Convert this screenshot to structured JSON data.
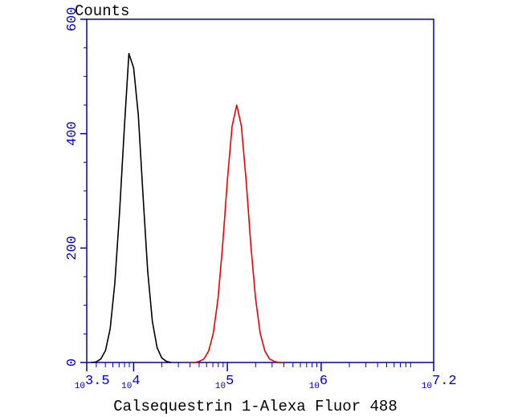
{
  "chart_data": {
    "type": "line",
    "y_label": "Counts",
    "x_label": "Calsequestrin 1-Alexa Fluor 488",
    "x_scale": "log",
    "xlim": [
      3162.28,
      15848931.92
    ],
    "xticks": [
      {
        "value": 3162.28,
        "label": "10",
        "exponent": "3.5"
      },
      {
        "value": 10000,
        "label": "10",
        "exponent": "4"
      },
      {
        "value": 100000,
        "label": "10",
        "exponent": "5"
      },
      {
        "value": 1000000,
        "label": "10",
        "exponent": "6"
      },
      {
        "value": 15848931.92,
        "label": "10",
        "exponent": "7.2"
      }
    ],
    "ylim": [
      0,
      600
    ],
    "yticks": [
      0,
      200,
      400,
      600
    ],
    "axis_color": "#0000cc",
    "series": [
      {
        "color": "#000000",
        "x": [
          3548,
          3981,
          4467,
          5012,
          5623,
          6310,
          7079,
          7943,
          8913,
          10000,
          11220,
          12589,
          14125,
          15849,
          17783,
          19953,
          22387,
          25119
        ],
        "values": [
          0,
          1,
          6,
          21,
          59,
          139,
          263,
          407,
          540,
          515,
          433,
          292,
          160,
          72,
          26,
          8,
          2,
          0
        ]
      },
      {
        "color": "#ee0000",
        "x": [
          39811,
          44668,
          50119,
          56234,
          63096,
          70795,
          79433,
          89125,
          100000,
          112202,
          125893,
          141254,
          158489,
          177828,
          199526,
          223872,
          251189,
          281838,
          316228,
          354813,
          398107
        ],
        "values": [
          0,
          0,
          2,
          6,
          20,
          51,
          112,
          206,
          318,
          413,
          450,
          413,
          318,
          206,
          112,
          51,
          20,
          6,
          2,
          0,
          0
        ]
      }
    ]
  }
}
